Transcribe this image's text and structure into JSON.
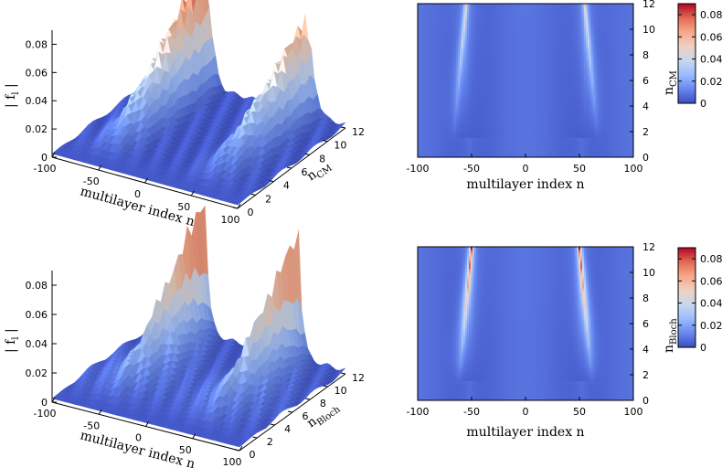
{
  "colormap": [
    "#3b4cc0",
    "#6788ee",
    "#9abbff",
    "#c9d7f0",
    "#edd1c2",
    "#f7a889",
    "#e26952",
    "#b40426"
  ],
  "chart_data": [
    {
      "type": "surface3d",
      "panel": "top-left",
      "zlabel": "| f",
      "zlabel_sub": "l",
      "zlabel_end": " |",
      "xlabel": "multilayer index n",
      "ylabel": "n",
      "ylabel_sub": "CM",
      "xlim": [
        -100,
        100
      ],
      "ylim": [
        0,
        12
      ],
      "zlim": [
        0,
        0.09
      ],
      "x_ticks": [
        "-100",
        "-50",
        "0",
        "50",
        "100"
      ],
      "y_ticks": [
        "0",
        "2",
        "4",
        "6",
        "8",
        "10",
        "12"
      ],
      "z_ticks": [
        "0",
        "0.02",
        "0.04",
        "0.06",
        "0.08"
      ],
      "peak_positions": [
        -55,
        55
      ],
      "peak_heights": [
        0.084,
        0.065
      ]
    },
    {
      "type": "heatmap",
      "panel": "top-right",
      "xlabel": "multilayer index n",
      "ylabel": "n",
      "ylabel_sub": "CM",
      "xlim": [
        -100,
        100
      ],
      "ylim": [
        0,
        12
      ],
      "x_ticks": [
        "-100",
        "-50",
        "0",
        "50",
        "100"
      ],
      "y_ticks": [
        "0",
        "2",
        "4",
        "6",
        "8",
        "10",
        "12"
      ],
      "colorbar_range": [
        0,
        0.09
      ],
      "colorbar_ticks": [
        "0",
        "0.02",
        "0.04",
        "0.06",
        "0.08"
      ],
      "peak_positions": [
        -55,
        55
      ],
      "peak_max": 0.045
    },
    {
      "type": "surface3d",
      "panel": "bottom-left",
      "zlabel": "| f",
      "zlabel_sub": "l",
      "zlabel_end": " |",
      "xlabel": "multilayer index n",
      "ylabel": "n",
      "ylabel_sub": "Bloch",
      "xlim": [
        -100,
        100
      ],
      "ylim": [
        0,
        12
      ],
      "zlim": [
        0,
        0.09
      ],
      "x_ticks": [
        "-100",
        "-50",
        "0",
        "50",
        "100"
      ],
      "y_ticks": [
        "0",
        "2",
        "4",
        "6",
        "8",
        "10",
        "12"
      ],
      "z_ticks": [
        "0",
        "0.02",
        "0.04",
        "0.06",
        "0.08"
      ],
      "peak_positions": [
        -50,
        50
      ],
      "peak_heights": [
        0.093,
        0.087
      ]
    },
    {
      "type": "heatmap",
      "panel": "bottom-right",
      "xlabel": "multilayer index n",
      "ylabel": "n",
      "ylabel_sub": "Bloch",
      "xlim": [
        -100,
        100
      ],
      "ylim": [
        0,
        12
      ],
      "x_ticks": [
        "-100",
        "-50",
        "0",
        "50",
        "100"
      ],
      "y_ticks": [
        "0",
        "2",
        "4",
        "6",
        "8",
        "10",
        "12"
      ],
      "colorbar_range": [
        0,
        0.09
      ],
      "colorbar_ticks": [
        "0",
        "0.02",
        "0.04",
        "0.06",
        "0.08"
      ],
      "peak_positions": [
        -50,
        50
      ],
      "peak_max": 0.085
    }
  ]
}
